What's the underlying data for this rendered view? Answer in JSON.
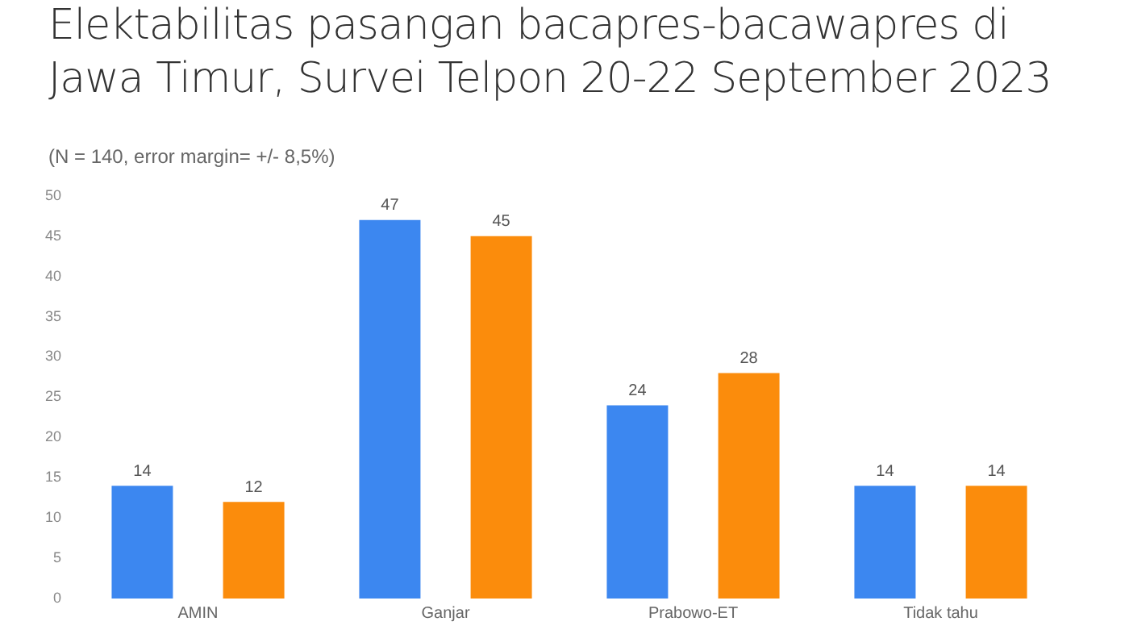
{
  "chart_data": {
    "type": "bar",
    "title": "Elektabilitas pasangan bacapres-bacawapres di Jawa Timur, Survei Telpon 20-22 September 2023",
    "subtitle": "(N = 140, error margin= +/- 8,5%)",
    "categories": [
      "AMIN",
      "Ganjar",
      "Prabowo-ET",
      "Tidak tahu"
    ],
    "series": [
      {
        "color": "#3c87f0",
        "values": [
          14,
          47,
          24,
          14
        ]
      },
      {
        "color": "#fb8c0c",
        "values": [
          12,
          45,
          28,
          14
        ]
      }
    ],
    "ylim": [
      0,
      50
    ],
    "yticks": [
      0,
      5,
      10,
      15,
      20,
      25,
      30,
      35,
      40,
      45,
      50
    ],
    "grid": false,
    "legend": false,
    "data_labels": true
  }
}
